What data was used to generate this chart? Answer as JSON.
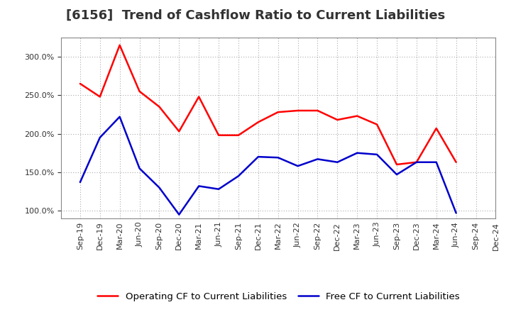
{
  "title": "[6156]  Trend of Cashflow Ratio to Current Liabilities",
  "labels": [
    "Sep-19",
    "Dec-19",
    "Mar-20",
    "Jun-20",
    "Sep-20",
    "Dec-20",
    "Mar-21",
    "Jun-21",
    "Sep-21",
    "Dec-21",
    "Mar-22",
    "Jun-22",
    "Sep-22",
    "Dec-22",
    "Mar-23",
    "Jun-23",
    "Sep-23",
    "Dec-23",
    "Mar-24",
    "Jun-24",
    "Sep-24",
    "Dec-24"
  ],
  "operating_cf": [
    265,
    248,
    315,
    255,
    235,
    203,
    248,
    198,
    198,
    215,
    228,
    230,
    230,
    218,
    223,
    212,
    160,
    163,
    207,
    163,
    null,
    null
  ],
  "free_cf": [
    137,
    195,
    222,
    155,
    130,
    95,
    132,
    128,
    145,
    170,
    169,
    158,
    167,
    163,
    175,
    173,
    147,
    163,
    163,
    97,
    null,
    null
  ],
  "operating_color": "#FF0000",
  "free_color": "#0000CC",
  "background_color": "#FFFFFF",
  "grid_color": "#AAAAAA",
  "ylim": [
    90,
    325
  ],
  "yticks": [
    100.0,
    150.0,
    200.0,
    250.0,
    300.0
  ],
  "title_fontsize": 13,
  "legend_fontsize": 9.5,
  "tick_fontsize": 8,
  "ylabel_fontsize": 8
}
